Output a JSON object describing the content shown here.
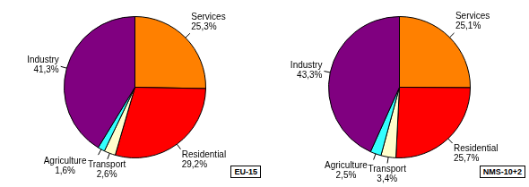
{
  "chart_data": [
    {
      "type": "pie",
      "title": "EU-15",
      "categories": [
        "Services",
        "Residential",
        "Transport",
        "Agriculture",
        "Industry"
      ],
      "values": [
        25.3,
        29.2,
        2.6,
        1.6,
        41.3
      ],
      "value_labels": [
        "25,3%",
        "29,2%",
        "2,6%",
        "1,6%",
        "41,3%"
      ],
      "colors": [
        "#ff8000",
        "#ff0000",
        "#ffffcc",
        "#33ffff",
        "#800080"
      ],
      "data_labels": true
    },
    {
      "type": "pie",
      "title": "NMS-10+2",
      "categories": [
        "Services",
        "Residential",
        "Transport",
        "Agriculture",
        "Industry"
      ],
      "values": [
        25.1,
        25.7,
        3.4,
        2.5,
        43.3
      ],
      "value_labels": [
        "25,1%",
        "25,7%",
        "3,4%",
        "2,5%",
        "43,3%"
      ],
      "colors": [
        "#ff8000",
        "#ff0000",
        "#ffffcc",
        "#33ffff",
        "#800080"
      ],
      "data_labels": true
    }
  ]
}
